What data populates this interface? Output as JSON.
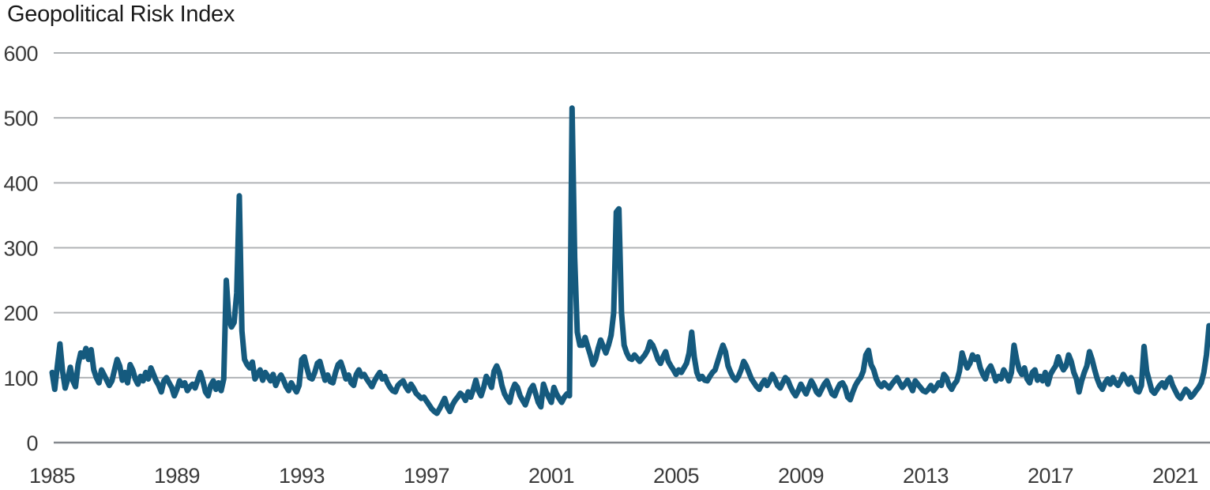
{
  "chart_data": {
    "type": "line",
    "title": "Geopolitical Risk Index",
    "xlabel": "",
    "ylabel": "",
    "grid": true,
    "legend": false,
    "x_axis": {
      "ticks": [
        1985,
        1989,
        1993,
        1997,
        2001,
        2005,
        2009,
        2013,
        2017,
        2021
      ],
      "min": 1985,
      "max": 2022.17
    },
    "y_axis": {
      "ticks": [
        0,
        100,
        200,
        300,
        400,
        500,
        600
      ],
      "min": 0,
      "max": 600
    },
    "series": [
      {
        "name": "Geopolitical Risk Index",
        "frequency": "monthly",
        "start": "1985-01",
        "end": "2022-02",
        "values": [
          108,
          82,
          118,
          152,
          110,
          84,
          98,
          116,
          95,
          86,
          120,
          138,
          132,
          145,
          128,
          143,
          112,
          100,
          92,
          112,
          104,
          96,
          88,
          95,
          112,
          128,
          118,
          96,
          108,
          92,
          120,
          112,
          98,
          90,
          102,
          95,
          108,
          98,
          115,
          105,
          95,
          88,
          78,
          95,
          100,
          92,
          85,
          72,
          82,
          95,
          88,
          92,
          80,
          86,
          90,
          84,
          96,
          108,
          95,
          78,
          72,
          88,
          95,
          82,
          92,
          80,
          98,
          250,
          190,
          178,
          185,
          230,
          380,
          172,
          128,
          120,
          115,
          124,
          98,
          105,
          112,
          96,
          108,
          102,
          95,
          105,
          88,
          98,
          104,
          96,
          86,
          80,
          92,
          85,
          78,
          88,
          128,
          132,
          115,
          100,
          98,
          108,
          122,
          125,
          110,
          96,
          104,
          94,
          92,
          108,
          120,
          124,
          112,
          98,
          104,
          92,
          88,
          105,
          112,
          102,
          105,
          98,
          92,
          86,
          95,
          102,
          108,
          98,
          102,
          92,
          85,
          80,
          78,
          88,
          92,
          95,
          86,
          80,
          90,
          84,
          76,
          72,
          68,
          70,
          64,
          58,
          52,
          48,
          45,
          52,
          60,
          68,
          55,
          48,
          58,
          65,
          70,
          76,
          72,
          65,
          78,
          70,
          82,
          96,
          80,
          72,
          85,
          102,
          95,
          85,
          110,
          118,
          108,
          88,
          75,
          68,
          62,
          80,
          90,
          85,
          72,
          65,
          58,
          70,
          82,
          88,
          75,
          62,
          55,
          90,
          78,
          70,
          62,
          85,
          75,
          68,
          62,
          70,
          75,
          72,
          515,
          285,
          170,
          150,
          150,
          162,
          148,
          135,
          120,
          128,
          145,
          158,
          148,
          138,
          150,
          165,
          200,
          355,
          360,
          200,
          150,
          138,
          130,
          128,
          135,
          130,
          125,
          130,
          135,
          142,
          155,
          150,
          140,
          128,
          122,
          132,
          140,
          125,
          118,
          112,
          105,
          112,
          108,
          115,
          122,
          138,
          170,
          132,
          108,
          98,
          102,
          96,
          95,
          102,
          108,
          112,
          125,
          138,
          150,
          140,
          118,
          108,
          100,
          96,
          102,
          112,
          125,
          118,
          108,
          98,
          92,
          86,
          82,
          90,
          96,
          88,
          95,
          105,
          98,
          88,
          84,
          92,
          100,
          96,
          86,
          78,
          72,
          80,
          90,
          82,
          75,
          85,
          95,
          88,
          78,
          74,
          82,
          90,
          95,
          85,
          75,
          72,
          82,
          90,
          92,
          85,
          70,
          66,
          78,
          88,
          95,
          100,
          110,
          135,
          142,
          120,
          112,
          98,
          90,
          86,
          92,
          88,
          84,
          90,
          95,
          100,
          92,
          85,
          90,
          96,
          88,
          80,
          95,
          90,
          85,
          80,
          78,
          82,
          88,
          80,
          85,
          92,
          88,
          105,
          100,
          88,
          82,
          90,
          95,
          110,
          138,
          125,
          115,
          122,
          135,
          128,
          132,
          115,
          105,
          98,
          112,
          118,
          108,
          95,
          102,
          98,
          112,
          105,
          95,
          108,
          150,
          128,
          112,
          105,
          115,
          98,
          92,
          108,
          112,
          96,
          102,
          95,
          108,
          90,
          105,
          112,
          118,
          132,
          120,
          112,
          118,
          135,
          125,
          108,
          98,
          78,
          95,
          108,
          118,
          140,
          128,
          112,
          98,
          88,
          82,
          92,
          98,
          90,
          100,
          92,
          88,
          95,
          105,
          98,
          90,
          100,
          92,
          80,
          78,
          88,
          148,
          110,
          95,
          80,
          76,
          82,
          88,
          92,
          85,
          95,
          100,
          88,
          80,
          72,
          68,
          75,
          82,
          78,
          70,
          74,
          80,
          85,
          92,
          108,
          135,
          180
        ]
      }
    ]
  },
  "colors": {
    "line": "#155A7E",
    "grid": "#B0B3B6",
    "zero_line": "#84888D",
    "title_text": "#1A1A1A",
    "tick_text": "#3B3B3B",
    "background": "#FFFFFF"
  }
}
